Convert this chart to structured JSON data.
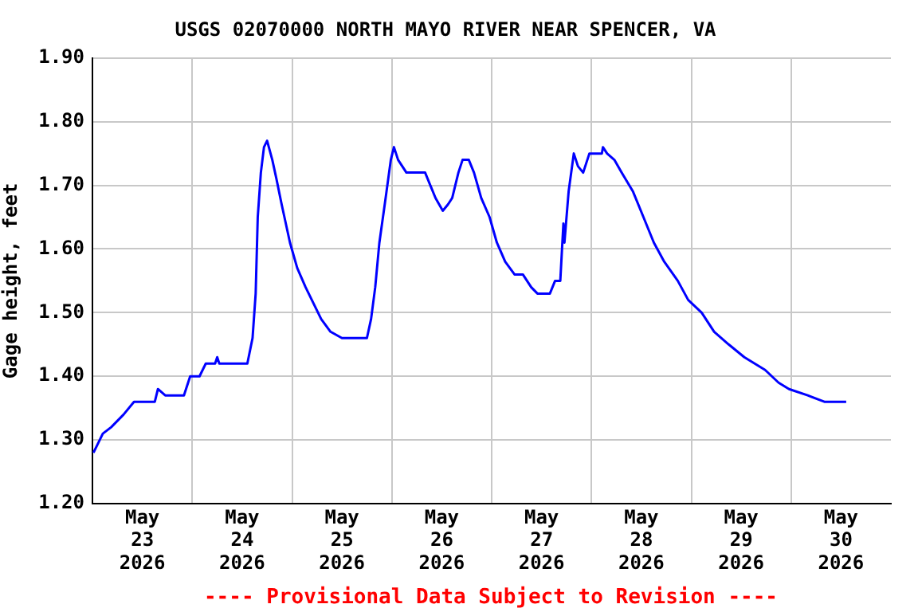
{
  "chart_data": {
    "type": "line",
    "title": "USGS 02070000 NORTH MAYO RIVER NEAR SPENCER, VA",
    "ylabel": "Gage height, feet",
    "annotations": [
      "---- Provisional Data Subject to Revision ----"
    ],
    "xlim": [
      "2026-05-23T00:00",
      "2026-05-31T00:00"
    ],
    "xticks": [
      {
        "value": "2026-05-23T12:00",
        "label": "May 23 2026"
      },
      {
        "value": "2026-05-24T00:00",
        "label": null
      },
      {
        "value": "2026-05-24T12:00",
        "label": "May 24 2026"
      },
      {
        "value": "2026-05-25T00:00",
        "label": null
      },
      {
        "value": "2026-05-25T12:00",
        "label": "May 25 2026"
      },
      {
        "value": "2026-05-26T00:00",
        "label": null
      },
      {
        "value": "2026-05-26T12:00",
        "label": "May 26 2026"
      },
      {
        "value": "2026-05-27T00:00",
        "label": null
      },
      {
        "value": "2026-05-27T12:00",
        "label": "May 27 2026"
      },
      {
        "value": "2026-05-28T00:00",
        "label": null
      },
      {
        "value": "2026-05-28T12:00",
        "label": "May 28 2026"
      },
      {
        "value": "2026-05-29T00:00",
        "label": null
      },
      {
        "value": "2026-05-29T12:00",
        "label": "May 29 2026"
      },
      {
        "value": "2026-05-30T00:00",
        "label": null
      },
      {
        "value": "2026-05-30T12:00",
        "label": "May 30 2026"
      }
    ],
    "ylim": [
      1.2,
      1.9
    ],
    "yticks": [
      {
        "value": 1.2,
        "label": "1.20"
      },
      {
        "value": 1.3,
        "label": "1.30"
      },
      {
        "value": 1.4,
        "label": "1.40"
      },
      {
        "value": 1.5,
        "label": "1.50"
      },
      {
        "value": 1.6,
        "label": "1.60"
      },
      {
        "value": 1.7,
        "label": "1.70"
      },
      {
        "value": 1.8,
        "label": "1.80"
      },
      {
        "value": 1.9,
        "label": "1.90"
      }
    ],
    "grid": true,
    "legend": false,
    "x": [
      "2026-05-23T00:15",
      "2026-05-23T01:00",
      "2026-05-23T02:30",
      "2026-05-23T04:30",
      "2026-05-23T07:30",
      "2026-05-23T10:00",
      "2026-05-23T15:00",
      "2026-05-23T15:45",
      "2026-05-23T17:30",
      "2026-05-23T22:00",
      "2026-05-23T23:30",
      "2026-05-24T01:45",
      "2026-05-24T03:15",
      "2026-05-24T05:30",
      "2026-05-24T06:00",
      "2026-05-24T06:30",
      "2026-05-24T13:15",
      "2026-05-24T14:30",
      "2026-05-24T15:15",
      "2026-05-24T15:45",
      "2026-05-24T16:30",
      "2026-05-24T17:15",
      "2026-05-24T18:00",
      "2026-05-24T19:15",
      "2026-05-24T20:15",
      "2026-05-24T21:30",
      "2026-05-24T23:30",
      "2026-05-25T01:15",
      "2026-05-25T03:15",
      "2026-05-25T06:15",
      "2026-05-25T07:00",
      "2026-05-25T09:15",
      "2026-05-25T12:00",
      "2026-05-25T18:00",
      "2026-05-25T19:00",
      "2026-05-25T20:00",
      "2026-05-25T21:00",
      "2026-05-25T22:30",
      "2026-05-25T23:45",
      "2026-05-26T00:30",
      "2026-05-26T01:30",
      "2026-05-26T03:30",
      "2026-05-26T08:00",
      "2026-05-26T09:15",
      "2026-05-26T10:30",
      "2026-05-26T12:15",
      "2026-05-26T13:30",
      "2026-05-26T14:30",
      "2026-05-26T16:00",
      "2026-05-26T17:00",
      "2026-05-26T18:30",
      "2026-05-26T19:45",
      "2026-05-26T21:30",
      "2026-05-26T23:30",
      "2026-05-27T01:15",
      "2026-05-27T03:15",
      "2026-05-27T05:30",
      "2026-05-27T07:30",
      "2026-05-27T09:30",
      "2026-05-27T11:00",
      "2026-05-27T14:00",
      "2026-05-27T15:15",
      "2026-05-27T16:30",
      "2026-05-27T17:15",
      "2026-05-27T17:30",
      "2026-05-27T18:30",
      "2026-05-27T19:45",
      "2026-05-27T20:45",
      "2026-05-27T22:00",
      "2026-05-27T23:30",
      "2026-05-28T02:30",
      "2026-05-28T02:45",
      "2026-05-28T03:45",
      "2026-05-28T05:30",
      "2026-05-28T07:15",
      "2026-05-28T10:00",
      "2026-05-28T12:30",
      "2026-05-28T15:00",
      "2026-05-28T17:30",
      "2026-05-28T20:45",
      "2026-05-28T23:15",
      "2026-05-29T02:30",
      "2026-05-29T05:30",
      "2026-05-29T09:00",
      "2026-05-29T12:45",
      "2026-05-29T17:45",
      "2026-05-29T21:00",
      "2026-05-29T23:30",
      "2026-05-30T04:00",
      "2026-05-30T08:00",
      "2026-05-30T13:15"
    ],
    "series": [
      {
        "color": "#0000ff",
        "values": [
          1.28,
          1.29,
          1.31,
          1.32,
          1.34,
          1.36,
          1.36,
          1.38,
          1.37,
          1.37,
          1.4,
          1.4,
          1.42,
          1.42,
          1.43,
          1.42,
          1.42,
          1.46,
          1.53,
          1.65,
          1.72,
          1.76,
          1.77,
          1.74,
          1.71,
          1.67,
          1.61,
          1.57,
          1.54,
          1.5,
          1.49,
          1.47,
          1.46,
          1.46,
          1.49,
          1.54,
          1.61,
          1.68,
          1.74,
          1.76,
          1.74,
          1.72,
          1.72,
          1.7,
          1.68,
          1.66,
          1.67,
          1.68,
          1.72,
          1.74,
          1.74,
          1.72,
          1.68,
          1.65,
          1.61,
          1.58,
          1.56,
          1.56,
          1.54,
          1.53,
          1.53,
          1.55,
          1.55,
          1.64,
          1.61,
          1.69,
          1.75,
          1.73,
          1.72,
          1.75,
          1.75,
          1.76,
          1.75,
          1.74,
          1.72,
          1.69,
          1.65,
          1.61,
          1.58,
          1.55,
          1.52,
          1.5,
          1.47,
          1.45,
          1.43,
          1.41,
          1.39,
          1.38,
          1.37,
          1.36,
          1.36
        ]
      }
    ]
  }
}
